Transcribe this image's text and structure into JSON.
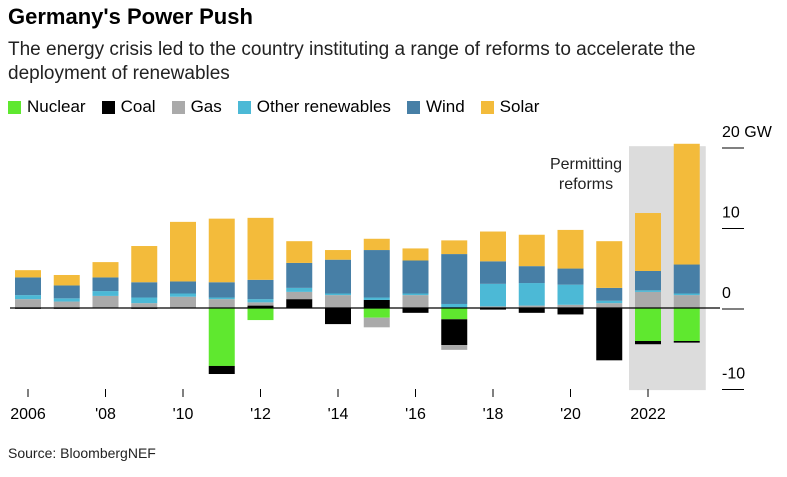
{
  "title": "Germany's Power Push",
  "subtitle": "The energy crisis led to the country instituting a range of reforms to accelerate the deployment of renewables",
  "source": "Source: BloombergNEF",
  "legend": [
    {
      "name": "Nuclear",
      "color": "#5fe82f"
    },
    {
      "name": "Coal",
      "color": "#000000"
    },
    {
      "name": "Gas",
      "color": "#aaaaaa"
    },
    {
      "name": "Other renewables",
      "color": "#4cb9d6"
    },
    {
      "name": "Wind",
      "color": "#477fa6"
    },
    {
      "name": "Solar",
      "color": "#f3bb3b"
    }
  ],
  "chart_data": {
    "type": "bar",
    "stacked": true,
    "categories": [
      "2006",
      "2007",
      "2008",
      "2009",
      "2010",
      "2011",
      "2012",
      "2013",
      "2014",
      "2015",
      "2016",
      "2017",
      "2018",
      "2019",
      "2020",
      "2021",
      "2022",
      "2023"
    ],
    "x_tick_labels": [
      "2006",
      "",
      "'08",
      "",
      "'10",
      "",
      "'12",
      "",
      "'14",
      "",
      "'16",
      "",
      "'18",
      "",
      "'20",
      "",
      "2022",
      ""
    ],
    "y_ticks": [
      20,
      10,
      0,
      -10
    ],
    "y_tick_labels": [
      "20 GW",
      "10",
      "0",
      "-10"
    ],
    "ylim": [
      -10.5,
      20.5
    ],
    "series": [
      {
        "name": "Nuclear",
        "color": "#5fe82f",
        "values": [
          0,
          0,
          0,
          0,
          0,
          -7.2,
          -1.5,
          0,
          0,
          -1.2,
          0,
          -1.4,
          0,
          0,
          0,
          0,
          -4.1,
          -4.1
        ]
      },
      {
        "name": "Coal",
        "color": "#000000",
        "values": [
          -0.1,
          -0.1,
          0,
          -0.1,
          0,
          -1.0,
          0.3,
          1.1,
          -2.0,
          1.0,
          -0.6,
          -3.2,
          -0.2,
          -0.6,
          -0.8,
          -6.5,
          -0.4,
          -0.2
        ]
      },
      {
        "name": "Gas",
        "color": "#aaaaaa",
        "values": [
          1.1,
          0.8,
          1.5,
          0.6,
          1.4,
          1.1,
          0.4,
          0.9,
          1.6,
          -1.2,
          1.6,
          -0.6,
          0.2,
          0.3,
          0.4,
          0.6,
          2.0,
          1.6
        ]
      },
      {
        "name": "Other renewables",
        "color": "#4cb9d6",
        "values": [
          0.5,
          0.4,
          0.6,
          0.7,
          0.4,
          0.2,
          0.4,
          0.5,
          0.2,
          0.3,
          0.2,
          0.5,
          2.8,
          2.8,
          2.5,
          0.3,
          0.2,
          0.2
        ]
      },
      {
        "name": "Wind",
        "color": "#477fa6",
        "values": [
          2.2,
          1.6,
          1.7,
          1.9,
          1.5,
          1.9,
          2.4,
          3.1,
          4.2,
          5.9,
          4.1,
          6.2,
          2.8,
          2.1,
          2.0,
          1.6,
          2.4,
          3.6
        ]
      },
      {
        "name": "Solar",
        "color": "#f3bb3b",
        "values": [
          0.9,
          1.3,
          1.9,
          4.5,
          7.4,
          7.9,
          7.7,
          2.7,
          1.2,
          1.4,
          1.5,
          1.7,
          3.7,
          3.9,
          4.8,
          5.8,
          7.2,
          15.0
        ]
      }
    ],
    "highlight": {
      "from": "2022",
      "to": "2023",
      "label": [
        "Permitting",
        "reforms"
      ]
    },
    "grid": false,
    "legend_position": "top"
  }
}
